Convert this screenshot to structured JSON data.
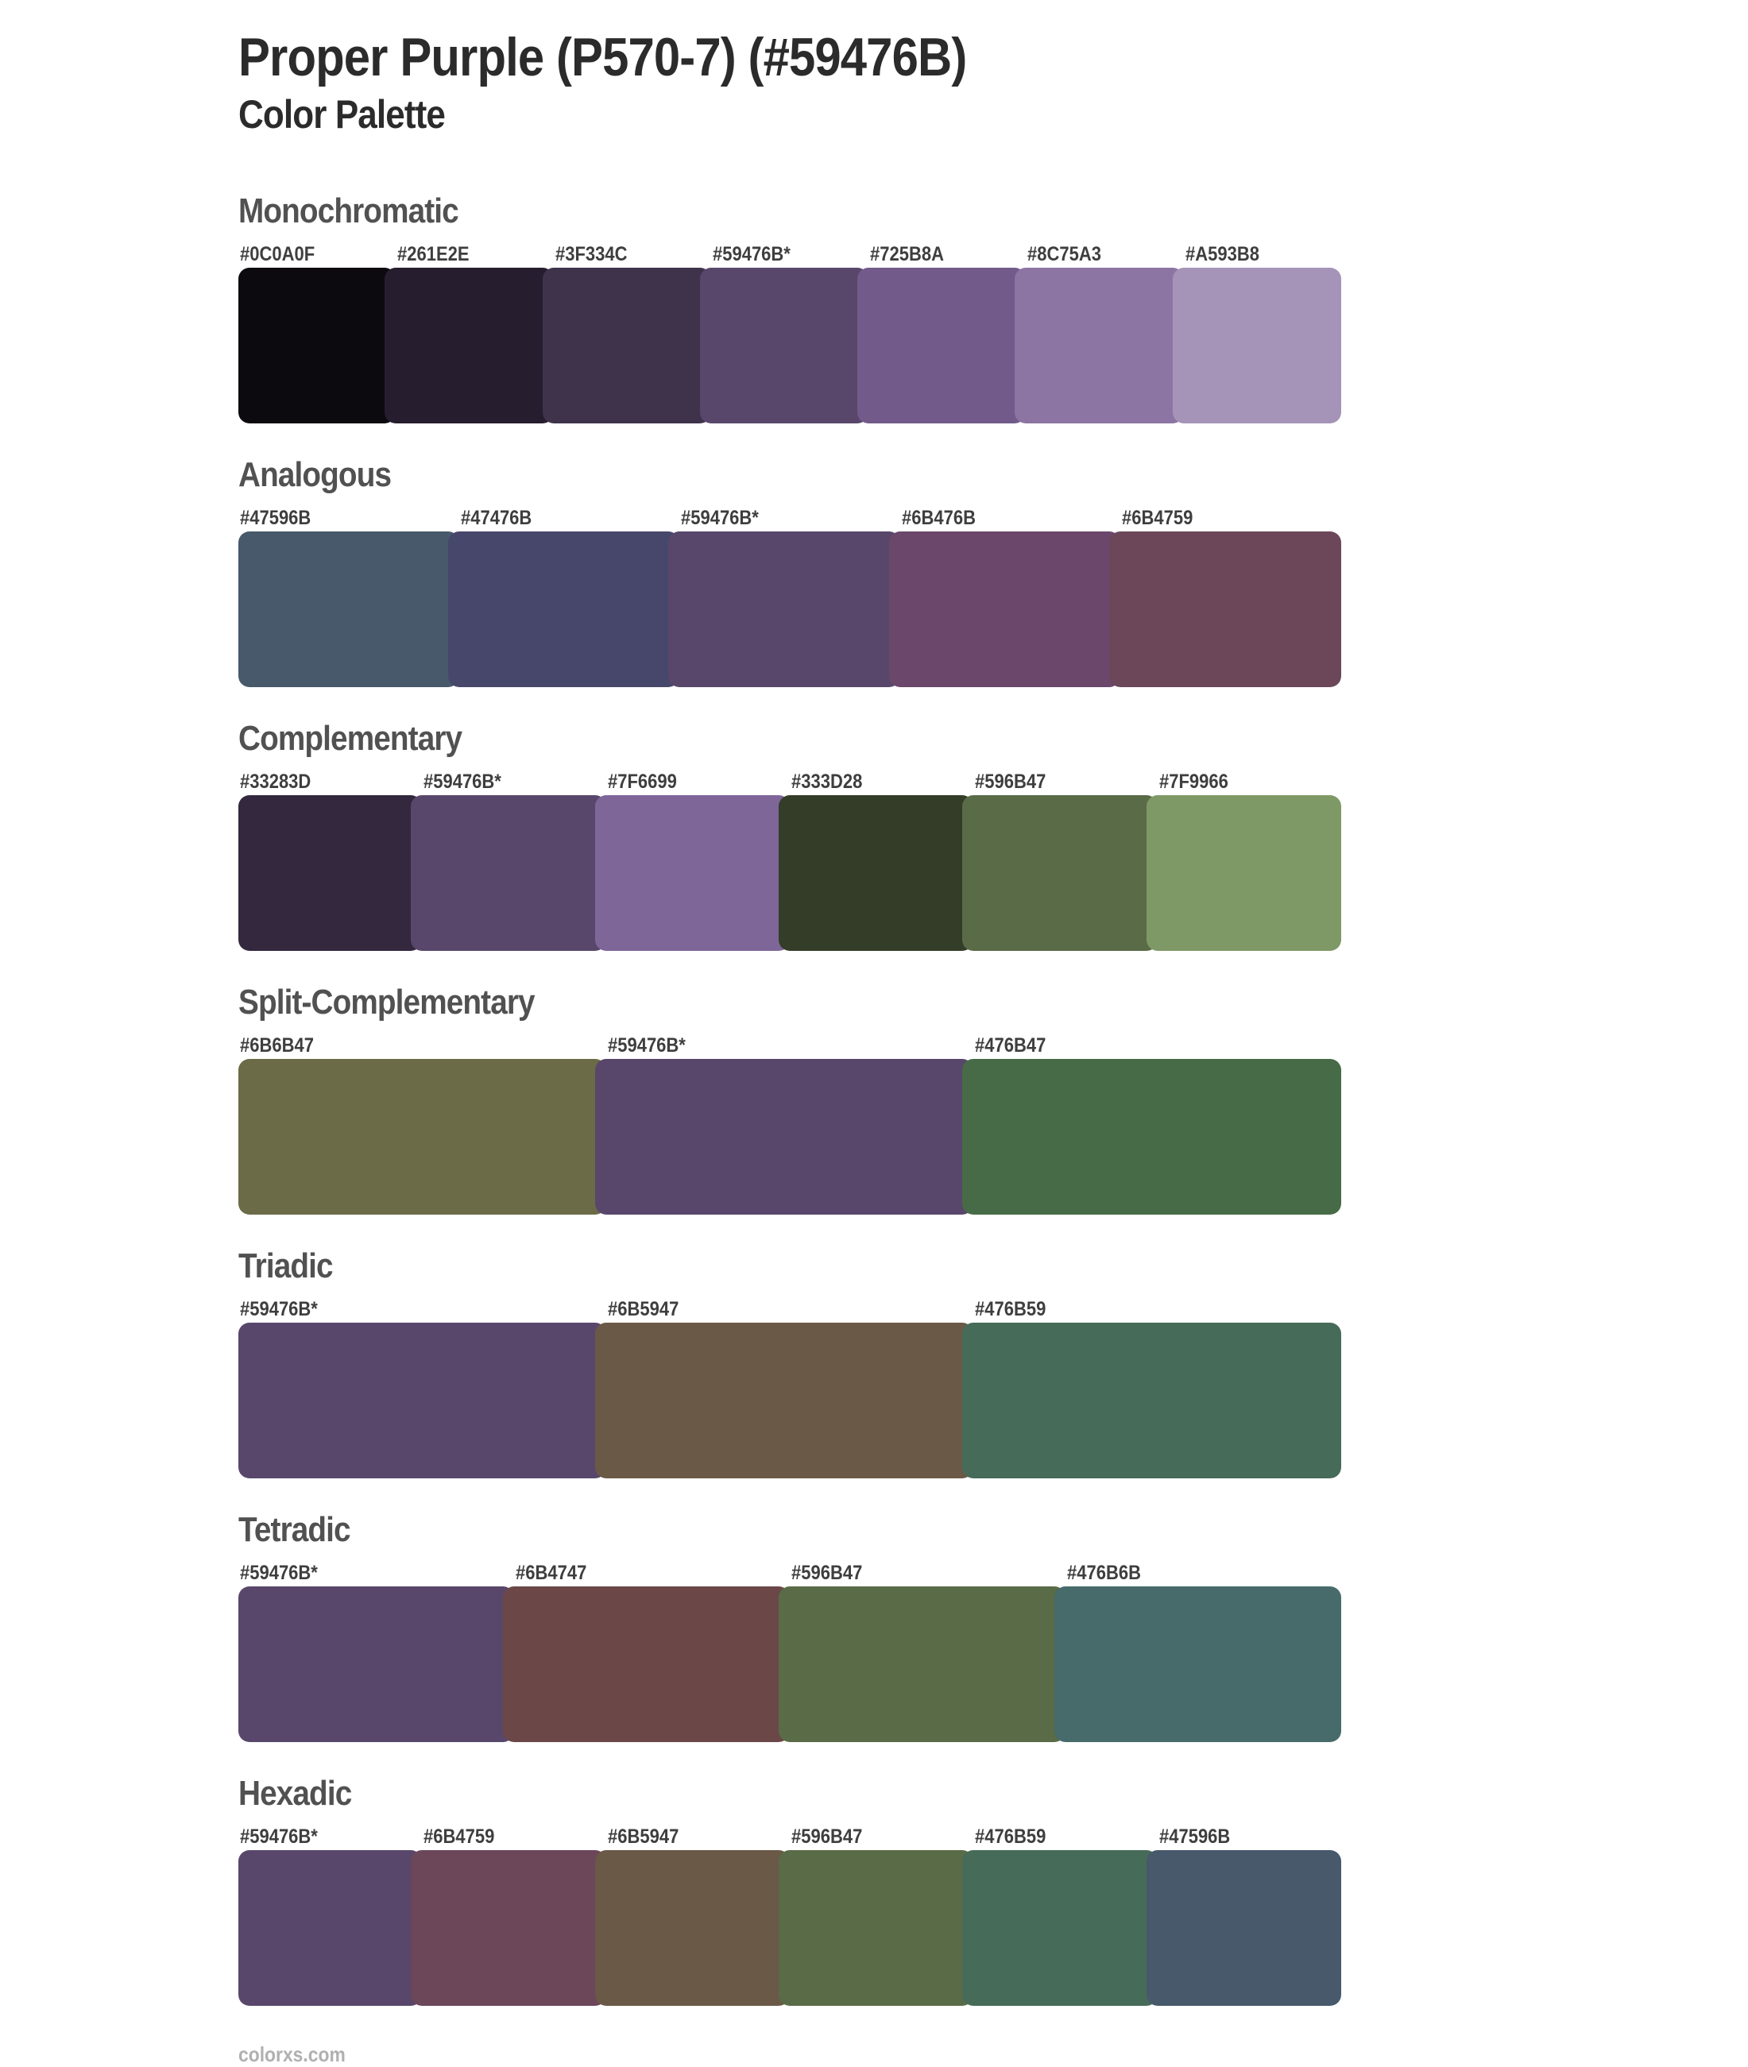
{
  "page": {
    "title": "Proper Purple (P570-7) (#59476B)",
    "subtitle": "Color Palette",
    "footer": "colorxs.com"
  },
  "base_color": "#59476B",
  "text_colors": {
    "title": "#2b2b2b",
    "section_heading": "#515151",
    "hex_label": "#3e3e3e",
    "footer": "#b0b0b0"
  },
  "sections": [
    {
      "name": "Monochromatic",
      "colors": [
        {
          "label": "#0C0A0F",
          "hex": "#0C0A0F"
        },
        {
          "label": "#261E2E",
          "hex": "#261E2E"
        },
        {
          "label": "#3F334C",
          "hex": "#3F334C"
        },
        {
          "label": "#59476B*",
          "hex": "#59476B"
        },
        {
          "label": "#725B8A",
          "hex": "#725B8A"
        },
        {
          "label": "#8C75A3",
          "hex": "#8C75A3"
        },
        {
          "label": "#A593B8",
          "hex": "#A593B8"
        }
      ]
    },
    {
      "name": "Analogous",
      "colors": [
        {
          "label": "#47596B",
          "hex": "#47596B"
        },
        {
          "label": "#47476B",
          "hex": "#47476B"
        },
        {
          "label": "#59476B*",
          "hex": "#59476B"
        },
        {
          "label": "#6B476B",
          "hex": "#6B476B"
        },
        {
          "label": "#6B4759",
          "hex": "#6B4759"
        }
      ]
    },
    {
      "name": "Complementary",
      "colors": [
        {
          "label": "#33283D",
          "hex": "#33283D"
        },
        {
          "label": "#59476B*",
          "hex": "#59476B"
        },
        {
          "label": "#7F6699",
          "hex": "#7F6699"
        },
        {
          "label": "#333D28",
          "hex": "#333D28"
        },
        {
          "label": "#596B47",
          "hex": "#596B47"
        },
        {
          "label": "#7F9966",
          "hex": "#7F9966"
        }
      ]
    },
    {
      "name": "Split-Complementary",
      "colors": [
        {
          "label": "#6B6B47",
          "hex": "#6B6B47"
        },
        {
          "label": "#59476B*",
          "hex": "#59476B"
        },
        {
          "label": "#476B47",
          "hex": "#476B47"
        }
      ]
    },
    {
      "name": "Triadic",
      "colors": [
        {
          "label": "#59476B*",
          "hex": "#59476B"
        },
        {
          "label": "#6B5947",
          "hex": "#6B5947"
        },
        {
          "label": "#476B59",
          "hex": "#476B59"
        }
      ]
    },
    {
      "name": "Tetradic",
      "colors": [
        {
          "label": "#59476B*",
          "hex": "#59476B"
        },
        {
          "label": "#6B4747",
          "hex": "#6B4747"
        },
        {
          "label": "#596B47",
          "hex": "#596B47"
        },
        {
          "label": "#476B6B",
          "hex": "#476B6B"
        }
      ]
    },
    {
      "name": "Hexadic",
      "colors": [
        {
          "label": "#59476B*",
          "hex": "#59476B"
        },
        {
          "label": "#6B4759",
          "hex": "#6B4759"
        },
        {
          "label": "#6B5947",
          "hex": "#6B5947"
        },
        {
          "label": "#596B47",
          "hex": "#596B47"
        },
        {
          "label": "#476B59",
          "hex": "#476B59"
        },
        {
          "label": "#47596B",
          "hex": "#47596B"
        }
      ]
    }
  ]
}
